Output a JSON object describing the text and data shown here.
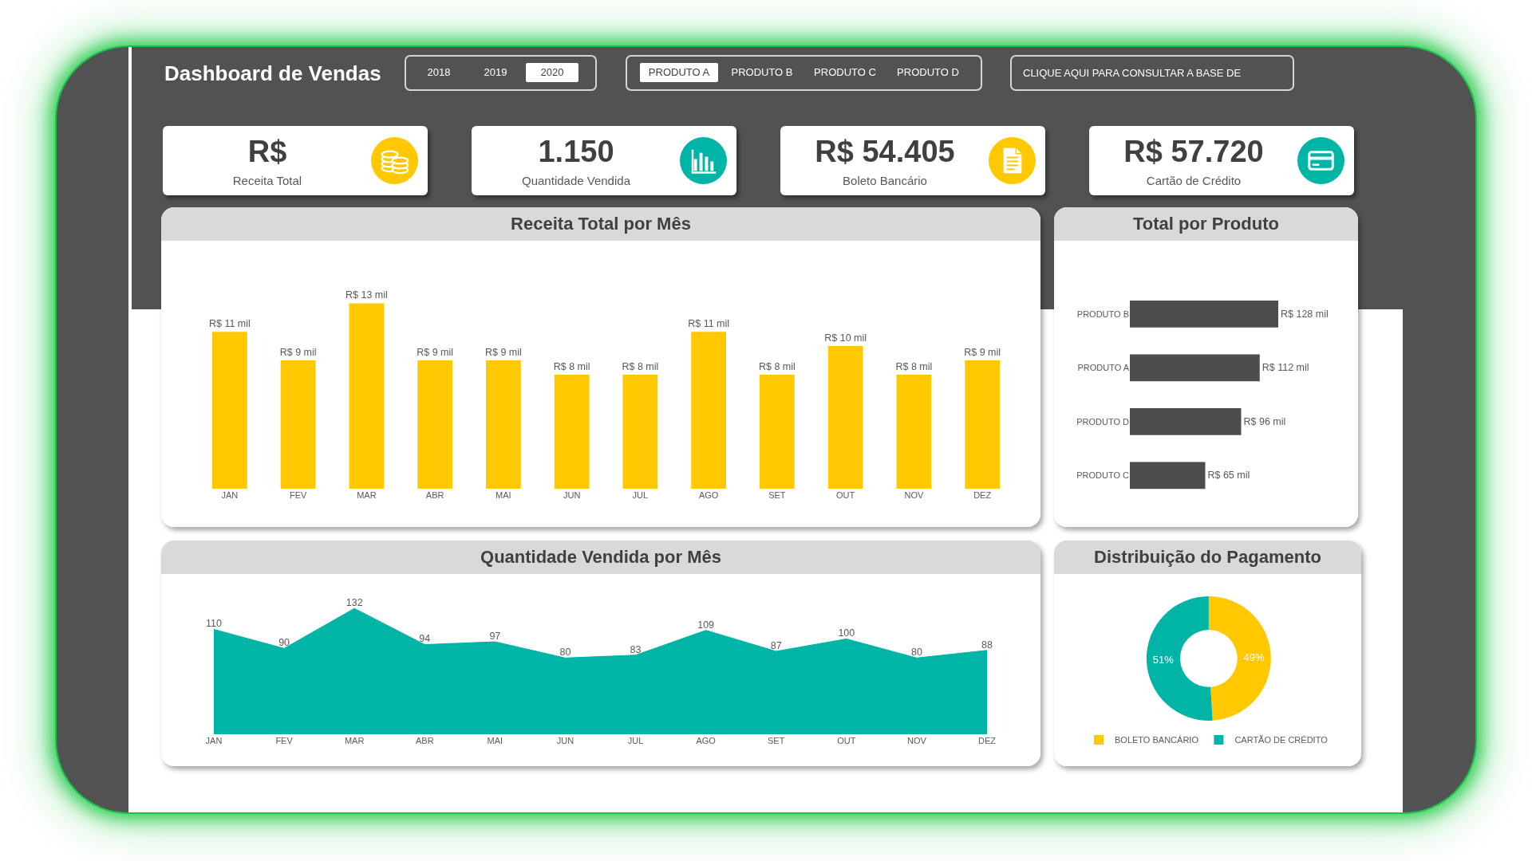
{
  "chart_data": [
    {
      "type": "other",
      "title": "Dashboard de Vendas"
    },
    {
      "type": "other",
      "categories": [
        "2018",
        "2019",
        "2020"
      ],
      "colors": [
        "#525252",
        "#525252",
        "#ffffff"
      ]
    },
    {
      "type": "other",
      "categories": [
        "PRODUTO A",
        "PRODUTO B",
        "PRODUTO C",
        "PRODUTO D"
      ],
      "colors": [
        "#ffffff",
        "#525252",
        "#525252",
        "#525252"
      ]
    },
    {
      "type": "other",
      "annotations": [
        "CLIQUE AQUI PARA CONSULTAR A BASE DE"
      ]
    },
    {
      "type": "other",
      "categories": [
        "Receita Total",
        "Quantidade Vendida",
        "Boleto Bancário",
        "Cartão de Crédito"
      ],
      "value_labels": [
        "R$",
        "1.150",
        "R$ 54.405",
        "R$ 57.720"
      ]
    },
    {
      "type": "bar",
      "title": "Receita Total por Mês",
      "categories": [
        "JAN",
        "FEV",
        "MAR",
        "ABR",
        "MAI",
        "JUN",
        "JUL",
        "AGO",
        "SET",
        "OUT",
        "NOV",
        "DEZ"
      ],
      "values": [
        11,
        9,
        13,
        9,
        9,
        8,
        8,
        11,
        8,
        10,
        8,
        9
      ],
      "value_labels": [
        "R$ 11 mil",
        "R$ 9 mil",
        "R$ 13 mil",
        "R$ 9 mil",
        "R$ 9 mil",
        "R$ 8 mil",
        "R$ 8 mil",
        "R$ 11 mil",
        "R$ 8 mil",
        "R$ 10 mil",
        "R$ 8 mil",
        "R$ 9 mil"
      ],
      "color": "#ffc800",
      "tick_labels": "x"
    },
    {
      "type": "bar",
      "orientation": "horizontal",
      "title": "Total por Produto",
      "categories": [
        "PRODUTO B",
        "PRODUTO A",
        "PRODUTO D",
        "PRODUTO C"
      ],
      "values": [
        128,
        112,
        96,
        65
      ],
      "value_labels": [
        "R$ 128 mil",
        "R$ 112 mil",
        "R$ 96 mil",
        "R$ 65 mil"
      ],
      "color": "#4d4d4d",
      "tick_labels": "y"
    },
    {
      "type": "area",
      "title": "Quantidade Vendida por Mês",
      "categories": [
        "JAN",
        "FEV",
        "MAR",
        "ABR",
        "MAI",
        "JUN",
        "JUL",
        "AGO",
        "SET",
        "OUT",
        "NOV",
        "DEZ"
      ],
      "values": [
        110,
        90,
        132,
        94,
        97,
        80,
        83,
        109,
        87,
        100,
        80,
        88
      ],
      "data_labels": true,
      "color": "#00b4a6",
      "tick_labels": "x"
    },
    {
      "type": "donut",
      "title": "Distribuição do Pagamento",
      "categories": [
        "BOLETO BANCÁRIO",
        "CARTÃO DE CRÉDITO"
      ],
      "values": [
        49,
        51
      ],
      "value_labels": [
        "49%",
        "51%"
      ],
      "colors": [
        "#ffc800",
        "#00b4a6"
      ],
      "legend": "bottom"
    }
  ]
}
